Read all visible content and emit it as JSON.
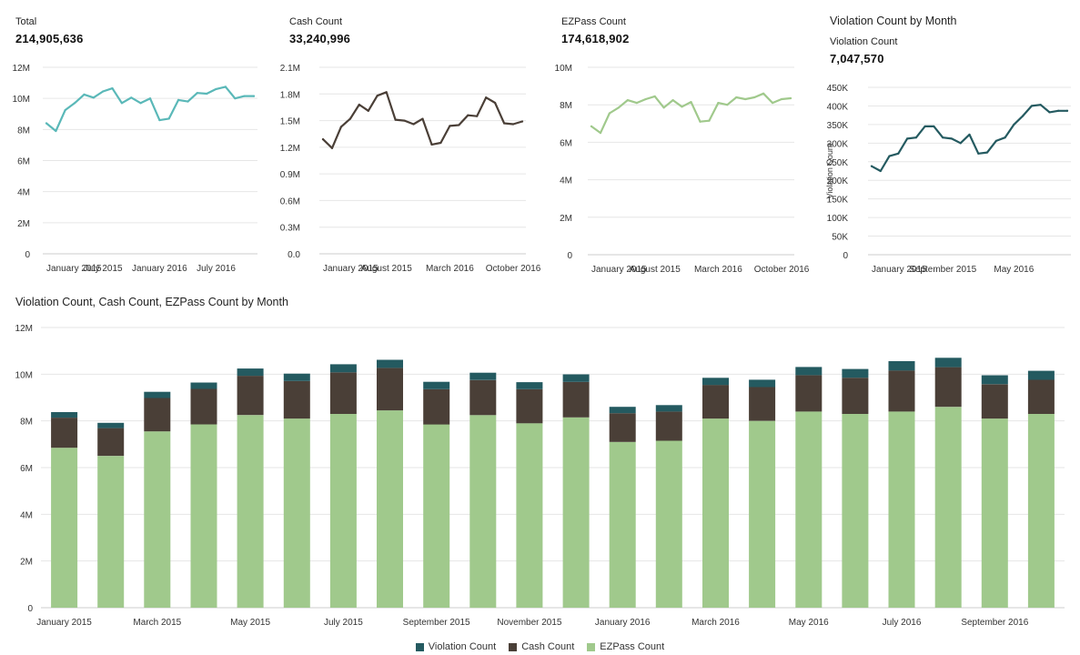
{
  "colors": {
    "total": "#5ab8b8",
    "cash": "#4a3f37",
    "ezpass": "#a0c98c",
    "violation": "#245a60",
    "grid": "#e6e6e6",
    "axis": "#cccccc"
  },
  "kpi": {
    "total_label": "Total",
    "total_value": "214,905,636",
    "cash_label": "Cash Count",
    "cash_value": "33,240,996",
    "ezpass_label": "EZPass Count",
    "ezpass_value": "174,618,902",
    "violation_title": "Violation Count by Month",
    "violation_label": "Violation Count",
    "violation_value": "7,047,570"
  },
  "legend": {
    "violation": "Violation Count",
    "cash": "Cash Count",
    "ezpass": "EZPass Count"
  },
  "chart_data": [
    {
      "id": "total",
      "type": "line",
      "title": "Total",
      "ylim": [
        0,
        12000000
      ],
      "yticks": [
        0,
        2000000,
        4000000,
        6000000,
        8000000,
        10000000,
        12000000
      ],
      "yticklabels": [
        "0",
        "2M",
        "4M",
        "6M",
        "8M",
        "10M",
        "12M"
      ],
      "xticks": [
        0,
        6,
        12,
        18
      ],
      "xticklabels": [
        "January 2015",
        "July 2015",
        "January 2016",
        "July 2016"
      ],
      "x": [
        0,
        1,
        2,
        3,
        4,
        5,
        6,
        7,
        8,
        9,
        10,
        11,
        12,
        13,
        14,
        15,
        16,
        17,
        18,
        19,
        20,
        21,
        22
      ],
      "values": [
        8400000.0,
        7900000.0,
        9250000.0,
        9700000.0,
        10250000.0,
        10050000.0,
        10450000.0,
        10650000.0,
        9700000.0,
        10050000.0,
        9700000.0,
        10000000.0,
        8600000.0,
        8700000.0,
        9900000.0,
        9800000.0,
        10350000.0,
        10300000.0,
        10600000.0,
        10750000.0,
        10000000.0,
        10150000.0,
        10150000.0
      ]
    },
    {
      "id": "cash",
      "type": "line",
      "title": "Cash Count",
      "ylim": [
        0,
        2100000
      ],
      "yticks": [
        0,
        300000,
        600000,
        900000,
        1200000,
        1500000,
        1800000,
        2100000
      ],
      "yticklabels": [
        "0.0",
        "0.3M",
        "0.6M",
        "0.9M",
        "1.2M",
        "1.5M",
        "1.8M",
        "2.1M"
      ],
      "xticks": [
        0,
        7,
        14,
        21
      ],
      "xticklabels": [
        "January 2015",
        "August 2015",
        "March 2016",
        "October 2016"
      ],
      "x": [
        0,
        1,
        2,
        3,
        4,
        5,
        6,
        7,
        8,
        9,
        10,
        11,
        12,
        13,
        14,
        15,
        16,
        17,
        18,
        19,
        20,
        21,
        22
      ],
      "values": [
        1290000.0,
        1190000.0,
        1430000.0,
        1520000.0,
        1680000.0,
        1610000.0,
        1780000.0,
        1820000.0,
        1510000.0,
        1500000.0,
        1460000.0,
        1520000.0,
        1230000.0,
        1250000.0,
        1440000.0,
        1450000.0,
        1560000.0,
        1550000.0,
        1760000.0,
        1700000.0,
        1470000.0,
        1460000.0,
        1490000.0
      ]
    },
    {
      "id": "ezpass",
      "type": "line",
      "title": "EZPass Count",
      "ylim": [
        0,
        10000000
      ],
      "yticks": [
        0,
        2000000,
        4000000,
        6000000,
        8000000,
        10000000
      ],
      "yticklabels": [
        "0",
        "2M",
        "4M",
        "6M",
        "8M",
        "10M"
      ],
      "xticks": [
        0,
        7,
        14,
        21
      ],
      "xticklabels": [
        "January 2015",
        "August 2015",
        "March 2016",
        "October 2016"
      ],
      "x": [
        0,
        1,
        2,
        3,
        4,
        5,
        6,
        7,
        8,
        9,
        10,
        11,
        12,
        13,
        14,
        15,
        16,
        17,
        18,
        19,
        20,
        21,
        22
      ],
      "values": [
        6850000.0,
        6500000.0,
        7550000.0,
        7850000.0,
        8250000.0,
        8100000.0,
        8300000.0,
        8450000.0,
        7850000.0,
        8250000.0,
        7900000.0,
        8150000.0,
        7100000.0,
        7150000.0,
        8100000.0,
        8000000.0,
        8400000.0,
        8300000.0,
        8400000.0,
        8600000.0,
        8100000.0,
        8300000.0,
        8350000.0
      ]
    },
    {
      "id": "violation",
      "type": "line",
      "title": "Violation Count by Month",
      "ylabel": "Violation Count",
      "ylim": [
        0,
        450000
      ],
      "yticks": [
        0,
        50000,
        100000,
        150000,
        200000,
        250000,
        300000,
        350000,
        400000,
        450000
      ],
      "yticklabels": [
        "0",
        "50K",
        "100K",
        "150K",
        "200K",
        "250K",
        "300K",
        "350K",
        "400K",
        "450K"
      ],
      "xticks": [
        0,
        8,
        16
      ],
      "xticklabels": [
        "January 2015",
        "September 2015",
        "May 2016"
      ],
      "x": [
        0,
        1,
        2,
        3,
        4,
        5,
        6,
        7,
        8,
        9,
        10,
        11,
        12,
        13,
        14,
        15,
        16,
        17,
        18,
        19,
        20,
        21,
        22
      ],
      "values": [
        238000,
        225000,
        265000,
        272000,
        312000,
        315000,
        345000,
        345000,
        315000,
        312000,
        300000,
        323000,
        272000,
        275000,
        306000,
        315000,
        350000,
        373000,
        400000,
        403000,
        383000,
        387000,
        387000
      ]
    },
    {
      "id": "stacked",
      "type": "bar",
      "stacked": true,
      "title": "Violation Count, Cash Count, EZPass Count by Month",
      "ylim": [
        0,
        12000000
      ],
      "yticks": [
        0,
        2000000,
        4000000,
        6000000,
        8000000,
        10000000,
        12000000
      ],
      "yticklabels": [
        "0",
        "2M",
        "4M",
        "6M",
        "8M",
        "10M",
        "12M"
      ],
      "categories": [
        "Jan 2015",
        "Feb 2015",
        "Mar 2015",
        "Apr 2015",
        "May 2015",
        "Jun 2015",
        "Jul 2015",
        "Aug 2015",
        "Sep 2015",
        "Oct 2015",
        "Nov 2015",
        "Dec 2015",
        "Jan 2016",
        "Feb 2016",
        "Mar 2016",
        "Apr 2016",
        "May 2016",
        "Jun 2016",
        "Jul 2016",
        "Aug 2016",
        "Sep 2016",
        "Oct 2016"
      ],
      "xticks": [
        0,
        2,
        4,
        6,
        8,
        10,
        12,
        14,
        16,
        18,
        20
      ],
      "xticklabels": [
        "January 2015",
        "March 2015",
        "May 2015",
        "July 2015",
        "September 2015",
        "November 2015",
        "January 2016",
        "March 2016",
        "May 2016",
        "July 2016",
        "September 2016"
      ],
      "series": [
        {
          "name": "EZPass Count",
          "values": [
            6850000.0,
            6500000.0,
            7550000.0,
            7850000.0,
            8250000.0,
            8100000.0,
            8300000.0,
            8450000.0,
            7850000.0,
            8250000.0,
            7900000.0,
            8150000.0,
            7100000.0,
            7150000.0,
            8100000.0,
            8000000.0,
            8400000.0,
            8300000.0,
            8400000.0,
            8600000.0,
            8100000.0,
            8300000.0
          ]
        },
        {
          "name": "Cash Count",
          "values": [
            1290000.0,
            1190000.0,
            1430000.0,
            1520000.0,
            1680000.0,
            1610000.0,
            1780000.0,
            1820000.0,
            1510000.0,
            1500000.0,
            1460000.0,
            1520000.0,
            1230000.0,
            1250000.0,
            1440000.0,
            1450000.0,
            1560000.0,
            1550000.0,
            1760000.0,
            1700000.0,
            1470000.0,
            1460000.0
          ]
        },
        {
          "name": "Violation Count",
          "values": [
            238000,
            225000,
            265000,
            272000,
            312000,
            315000,
            345000,
            345000,
            315000,
            312000,
            300000,
            323000,
            272000,
            275000,
            306000,
            315000,
            350000,
            373000,
            400000,
            403000,
            383000,
            387000
          ]
        }
      ]
    }
  ]
}
